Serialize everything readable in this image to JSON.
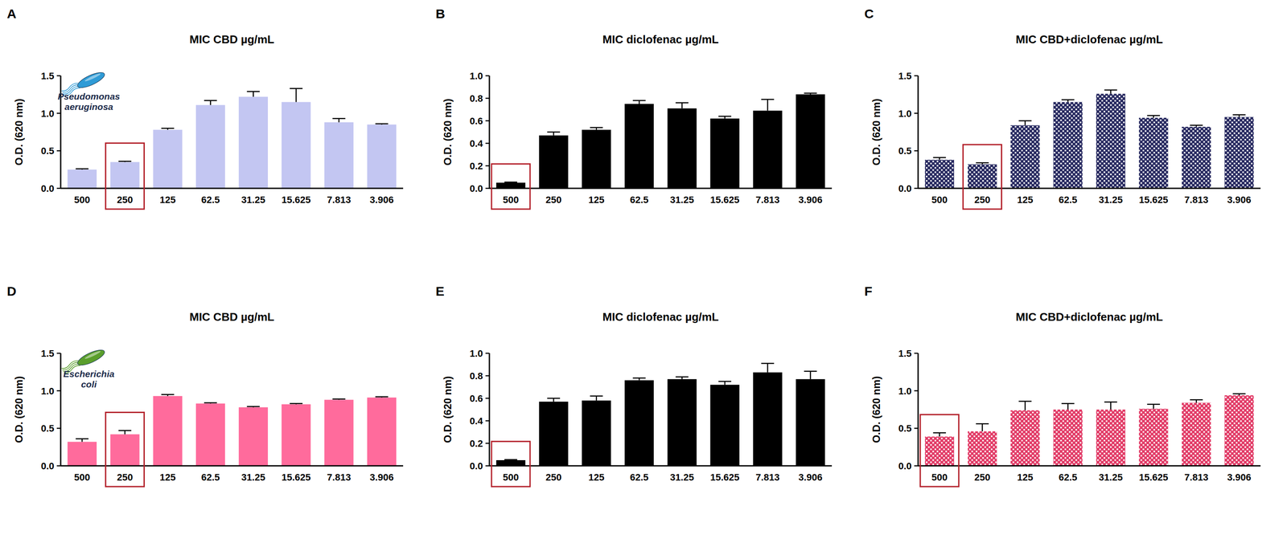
{
  "chart_data": [
    {
      "type": "bar",
      "panel": "A",
      "title": "MIC CBD µg/mL",
      "annotation": "Pseudomonas aeruginosa",
      "y_label": "O.D. (620 nm)",
      "categories": [
        "500",
        "250",
        "125",
        "62.5",
        "31.25",
        "15.625",
        "7.813",
        "3.906"
      ],
      "values": [
        0.25,
        0.35,
        0.78,
        1.11,
        1.22,
        1.15,
        0.88,
        0.85
      ],
      "errors": [
        0.01,
        0.01,
        0.02,
        0.06,
        0.07,
        0.18,
        0.05,
        0.01
      ],
      "color": "#c3c6f2",
      "ylim": [
        0,
        1.5
      ],
      "yticks": [
        {
          "value": 0,
          "label": "0.0"
        },
        {
          "value": 0.5,
          "label": "0.5"
        },
        {
          "value": 1,
          "label": "1.0"
        },
        {
          "value": 1.5,
          "label": "1.5"
        }
      ],
      "mic": "250"
    },
    {
      "type": "bar",
      "panel": "B",
      "title": "MIC diclofenac µg/mL",
      "y_label": "O.D. (620 nm)",
      "categories": [
        "500",
        "250",
        "125",
        "62.5",
        "31.25",
        "15.625",
        "7.813",
        "3.906"
      ],
      "values": [
        0.05,
        0.47,
        0.52,
        0.75,
        0.71,
        0.62,
        0.69,
        0.835
      ],
      "errors": [
        0.005,
        0.03,
        0.02,
        0.03,
        0.05,
        0.02,
        0.1,
        0.01
      ],
      "color": "#000000",
      "ylim": [
        0,
        1
      ],
      "yticks": [
        {
          "value": 0,
          "label": "0.0"
        },
        {
          "value": 0.2,
          "label": "0.2"
        },
        {
          "value": 0.4,
          "label": "0.4"
        },
        {
          "value": 0.6,
          "label": "0.6"
        },
        {
          "value": 0.8,
          "label": "0.8"
        },
        {
          "value": 1,
          "label": "1.0"
        }
      ],
      "mic": "500"
    },
    {
      "type": "bar",
      "panel": "C",
      "title": "MIC CBD+diclofenac µg/mL",
      "y_label": "O.D. (620 nm)",
      "categories": [
        "500",
        "250",
        "125",
        "62.5",
        "31.25",
        "15.625",
        "7.813",
        "3.906"
      ],
      "values": [
        0.38,
        0.32,
        0.84,
        1.15,
        1.26,
        0.94,
        0.82,
        0.95
      ],
      "errors": [
        0.03,
        0.02,
        0.06,
        0.03,
        0.05,
        0.03,
        0.02,
        0.03
      ],
      "color": "#2a2c62",
      "marker": "checkered",
      "ylim": [
        0,
        1.5
      ],
      "yticks": [
        {
          "value": 0,
          "label": "0.0"
        },
        {
          "value": 0.5,
          "label": "0.5"
        },
        {
          "value": 1,
          "label": "1.0"
        },
        {
          "value": 1.5,
          "label": "1.5"
        }
      ],
      "mic": "250"
    },
    {
      "type": "bar",
      "panel": "D",
      "title": "MIC CBD µg/mL",
      "annotation": "Escherichia coli",
      "y_label": "O.D. (620 nm)",
      "categories": [
        "500",
        "250",
        "125",
        "62.5",
        "31.25",
        "15.625",
        "7.813",
        "3.906"
      ],
      "values": [
        0.32,
        0.42,
        0.93,
        0.83,
        0.78,
        0.82,
        0.88,
        0.91
      ],
      "errors": [
        0.04,
        0.05,
        0.02,
        0.01,
        0.01,
        0.01,
        0.01,
        0.01
      ],
      "color": "#ff6b9c",
      "ylim": [
        0,
        1.5
      ],
      "yticks": [
        {
          "value": 0,
          "label": "0.0"
        },
        {
          "value": 0.5,
          "label": "0.5"
        },
        {
          "value": 1,
          "label": "1.0"
        },
        {
          "value": 1.5,
          "label": "1.5"
        }
      ],
      "mic": "250"
    },
    {
      "type": "bar",
      "panel": "E",
      "title": "MIC diclofenac µg/mL",
      "y_label": "O.D. (620 nm)",
      "categories": [
        "500",
        "250",
        "125",
        "62.5",
        "31.25",
        "15.625",
        "7.813",
        "3.906"
      ],
      "values": [
        0.05,
        0.57,
        0.58,
        0.76,
        0.77,
        0.72,
        0.83,
        0.77
      ],
      "errors": [
        0.005,
        0.03,
        0.04,
        0.02,
        0.02,
        0.03,
        0.08,
        0.07
      ],
      "color": "#000000",
      "ylim": [
        0,
        1
      ],
      "yticks": [
        {
          "value": 0,
          "label": "0.0"
        },
        {
          "value": 0.2,
          "label": "0.2"
        },
        {
          "value": 0.4,
          "label": "0.4"
        },
        {
          "value": 0.6,
          "label": "0.6"
        },
        {
          "value": 0.8,
          "label": "0.8"
        },
        {
          "value": 1,
          "label": "1.0"
        }
      ],
      "mic": "500"
    },
    {
      "type": "bar",
      "panel": "F",
      "title": "MIC CBD+diclofenac µg/mL",
      "y_label": "O.D. (620 nm)",
      "categories": [
        "500",
        "250",
        "125",
        "62.5",
        "31.25",
        "15.625",
        "7.813",
        "3.906"
      ],
      "values": [
        0.39,
        0.46,
        0.74,
        0.75,
        0.75,
        0.76,
        0.84,
        0.94
      ],
      "errors": [
        0.05,
        0.1,
        0.12,
        0.08,
        0.1,
        0.06,
        0.04,
        0.02
      ],
      "color": "#e23d68",
      "marker": "checkered",
      "ylim": [
        0,
        1.5
      ],
      "yticks": [
        {
          "value": 0,
          "label": "0.0"
        },
        {
          "value": 0.5,
          "label": "0.5"
        },
        {
          "value": 1,
          "label": "1.0"
        },
        {
          "value": 1.5,
          "label": "1.5"
        }
      ],
      "mic": "500"
    }
  ]
}
